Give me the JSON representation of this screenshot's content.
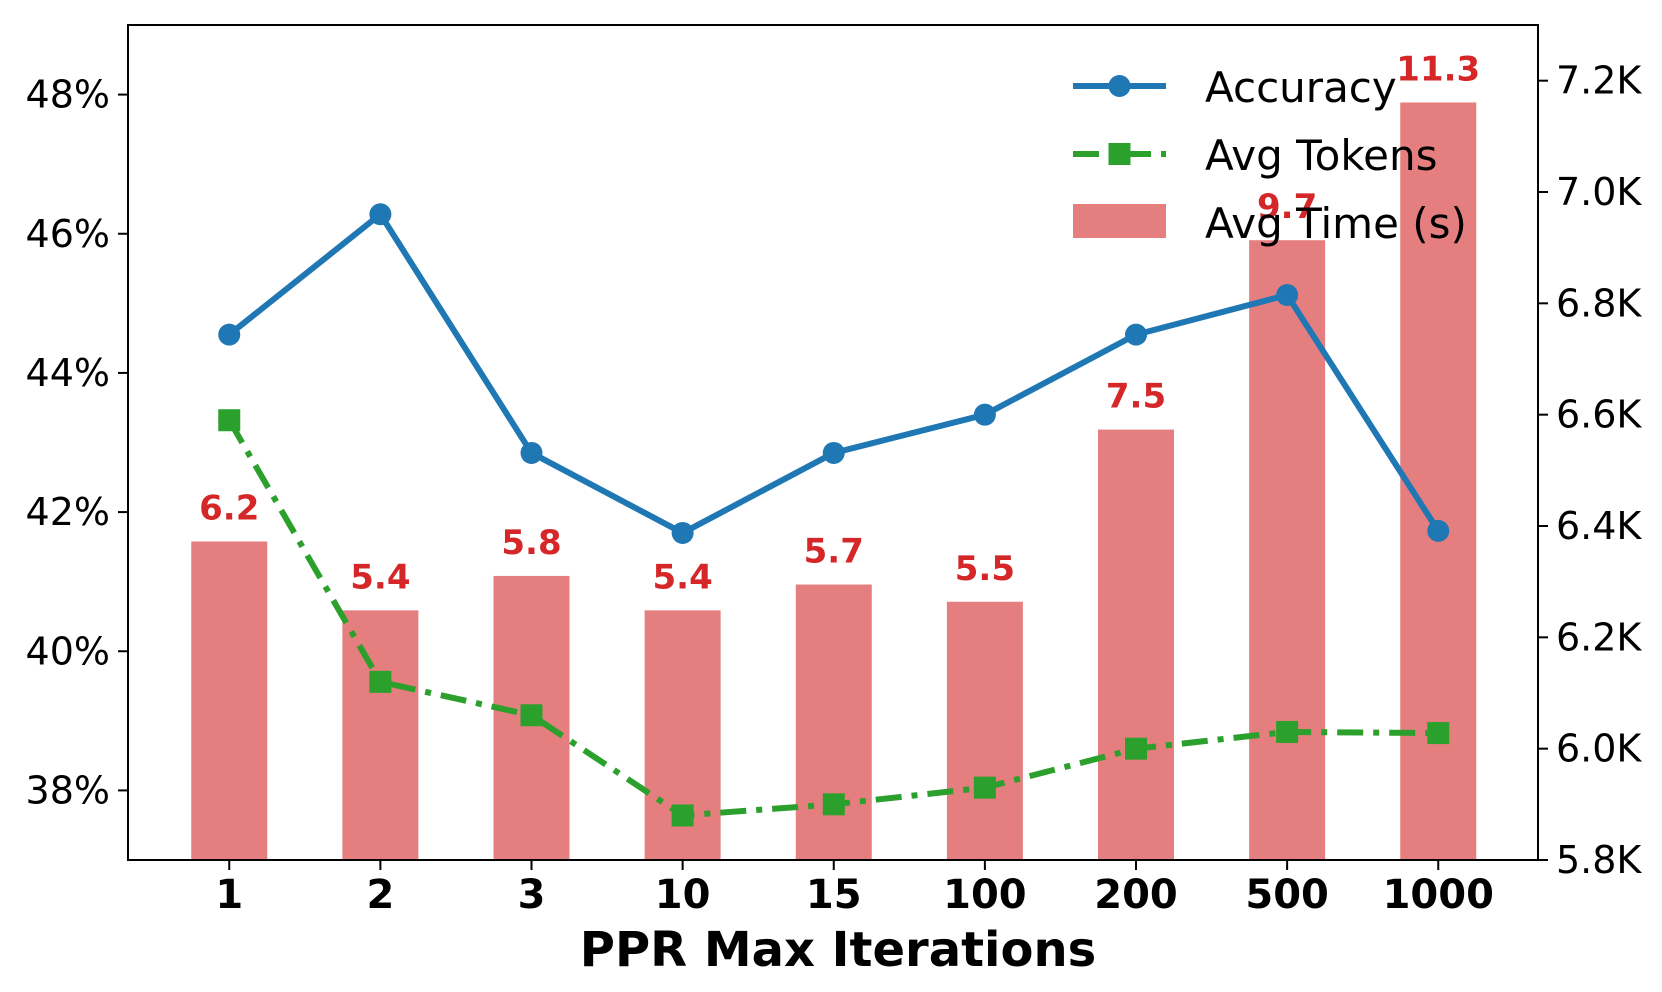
{
  "chart_data": {
    "type": "bar+line",
    "categories": [
      "1",
      "2",
      "3",
      "10",
      "15",
      "100",
      "200",
      "500",
      "1000"
    ],
    "xlabel": "PPR Max Iterations",
    "left_axis": {
      "ylim": [
        37,
        49
      ],
      "ticks": [
        38,
        40,
        42,
        44,
        46,
        48
      ],
      "tick_labels": [
        "38%",
        "40%",
        "42%",
        "44%",
        "46%",
        "48%"
      ]
    },
    "right_axis": {
      "ylim": [
        5800,
        7300
      ],
      "ticks": [
        5800,
        6000,
        6200,
        6400,
        6600,
        6800,
        7000,
        7200
      ],
      "tick_labels": [
        "5.8K",
        "6.0K",
        "6.2K",
        "6.4K",
        "6.6K",
        "6.8K",
        "7.0K",
        "7.2K"
      ]
    },
    "series": [
      {
        "name": "Accuracy",
        "type": "line",
        "axis": "left",
        "color": "#1f77b4",
        "marker": "circle",
        "values": [
          44.55,
          46.28,
          42.85,
          41.7,
          42.85,
          43.4,
          44.55,
          45.12,
          41.73
        ]
      },
      {
        "name": "Avg Tokens",
        "type": "line",
        "axis": "right",
        "color": "#2ca02c",
        "marker": "square",
        "dash": "dashdot",
        "values": [
          6590,
          6120,
          6060,
          5880,
          5900,
          5930,
          6000,
          6030,
          6028
        ]
      },
      {
        "name": "Avg Time (s)",
        "type": "bar",
        "color": "#e57e7e",
        "label_color": "#d62728",
        "values": [
          6.2,
          5.4,
          5.8,
          5.4,
          5.7,
          5.5,
          7.5,
          9.7,
          11.3
        ],
        "bar_labels": [
          "6.2",
          "5.4",
          "5.8",
          "5.4",
          "5.7",
          "5.5",
          "7.5",
          "9.7",
          "11.3"
        ]
      }
    ],
    "legend": {
      "position": "top-right",
      "entries": [
        "Accuracy",
        "Avg Tokens",
        "Avg Time (s)"
      ]
    }
  }
}
